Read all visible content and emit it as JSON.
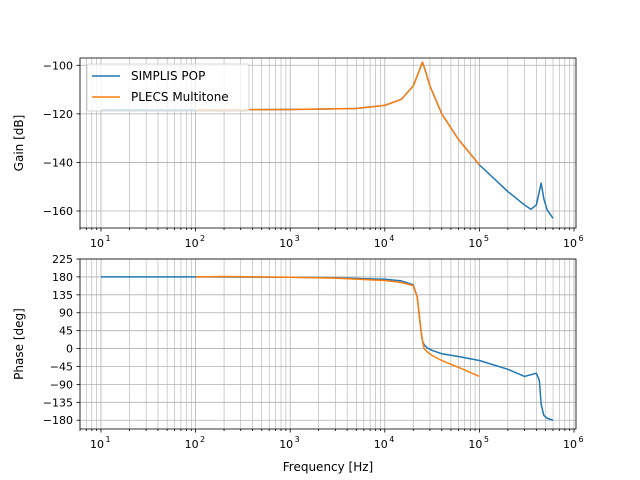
{
  "chart_data": [
    {
      "type": "line",
      "xscale": "log",
      "xlim": [
        6,
        1050000
      ],
      "ylim": [
        -167,
        -97
      ],
      "xlabel": "",
      "ylabel": "Gain [dB]",
      "grid": true,
      "legend": "top-left",
      "xticks": [
        10,
        100,
        1000,
        10000,
        100000,
        1000000
      ],
      "xtick_labels": [
        {
          "base": "10",
          "exp": "1"
        },
        {
          "base": "10",
          "exp": "2"
        },
        {
          "base": "10",
          "exp": "3"
        },
        {
          "base": "10",
          "exp": "4"
        },
        {
          "base": "10",
          "exp": "5"
        },
        {
          "base": "10",
          "exp": "6"
        }
      ],
      "yticks": [
        -100,
        -120,
        -140,
        -160
      ],
      "ytick_labels": [
        "−100",
        "−120",
        "−140",
        "−160"
      ],
      "series": [
        {
          "name": "SIMPLIS POP",
          "color": "#1f77b4",
          "x": [
            10,
            100,
            1000,
            5000,
            10000,
            15000,
            20000,
            23000,
            25000,
            27000,
            30000,
            40000,
            60000,
            100000,
            200000,
            300000,
            350000,
            400000,
            450000,
            480000,
            520000,
            600000
          ],
          "y": [
            -118.3,
            -118.3,
            -118.2,
            -117.8,
            -116.5,
            -114,
            -108.5,
            -102.5,
            -98.7,
            -102.5,
            -108.5,
            -120,
            -130.5,
            -141,
            -152,
            -157.5,
            -159.3,
            -157.5,
            -148.5,
            -155,
            -159.5,
            -163
          ]
        },
        {
          "name": "PLECS Multitone",
          "color": "#ff7f0e",
          "x": [
            100,
            1000,
            5000,
            10000,
            15000,
            20000,
            23000,
            25000,
            27000,
            30000,
            40000,
            60000,
            100000
          ],
          "y": [
            -118.3,
            -118.2,
            -117.8,
            -116.5,
            -114,
            -108.5,
            -102.5,
            -98.7,
            -102.5,
            -108.5,
            -120,
            -130.5,
            -141
          ]
        }
      ]
    },
    {
      "type": "line",
      "xscale": "log",
      "xlim": [
        6,
        1050000
      ],
      "ylim": [
        -202,
        225
      ],
      "xlabel": "Frequency [Hz]",
      "ylabel": "Phase [deg]",
      "grid": true,
      "xticks": [
        10,
        100,
        1000,
        10000,
        100000,
        1000000
      ],
      "xtick_labels": [
        {
          "base": "10",
          "exp": "1"
        },
        {
          "base": "10",
          "exp": "2"
        },
        {
          "base": "10",
          "exp": "3"
        },
        {
          "base": "10",
          "exp": "4"
        },
        {
          "base": "10",
          "exp": "5"
        },
        {
          "base": "10",
          "exp": "6"
        }
      ],
      "yticks": [
        225,
        180,
        135,
        90,
        45,
        0,
        -45,
        -90,
        -135,
        -180
      ],
      "ytick_labels": [
        "225",
        "180",
        "135",
        "90",
        "45",
        "0",
        "−45",
        "−90",
        "−135",
        "−180"
      ],
      "series": [
        {
          "name": "SIMPLIS POP",
          "color": "#1f77b4",
          "x": [
            10,
            100,
            1000,
            3000,
            10000,
            15000,
            20000,
            22000,
            23000,
            24000,
            25000,
            26000,
            28000,
            32000,
            40000,
            60000,
            100000,
            200000,
            300000,
            400000,
            430000,
            450000,
            480000,
            520000,
            600000
          ],
          "y": [
            180,
            180,
            179,
            178,
            174,
            170,
            160,
            130,
            90,
            50,
            20,
            10,
            2,
            -5,
            -13,
            -20,
            -30,
            -52,
            -70,
            -62,
            -80,
            -140,
            -168,
            -175,
            -180
          ]
        },
        {
          "name": "PLECS Multitone",
          "color": "#ff7f0e",
          "x": [
            100,
            200,
            1000,
            3000,
            10000,
            15000,
            20000,
            22000,
            23000,
            24000,
            25000,
            26000,
            28000,
            32000,
            40000,
            60000,
            100000
          ],
          "y": [
            180,
            181,
            179,
            177,
            171,
            166,
            158,
            130,
            90,
            50,
            20,
            0,
            -8,
            -18,
            -30,
            -47,
            -70
          ]
        }
      ]
    }
  ]
}
